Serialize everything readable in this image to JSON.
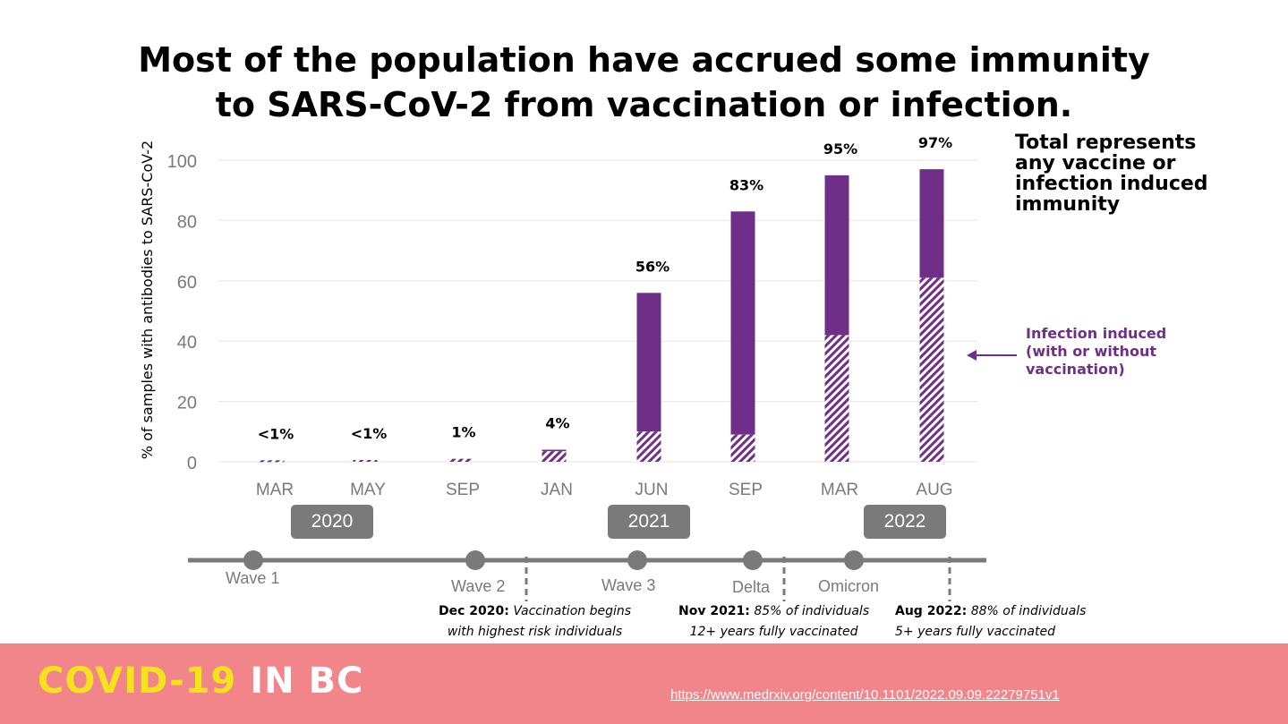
{
  "title": {
    "line1": "Most of the population have accrued some immunity",
    "line2": "to SARS-CoV-2 from vaccination or infection."
  },
  "side_note": "Total represents any vaccine or infection induced immunity",
  "legend": {
    "infection_label": "Infection induced (with or without vaccination)"
  },
  "years": [
    "2020",
    "2021",
    "2022"
  ],
  "timeline": {
    "waves": [
      "Wave 1",
      "Wave 2",
      "Wave 3",
      "Delta",
      "Omicron"
    ],
    "notes": [
      {
        "bold": "Dec 2020:",
        "italic1": "Vaccination begins",
        "italic2": "with highest risk individuals"
      },
      {
        "bold": "Nov 2021:",
        "italic1": "85% of individuals",
        "italic2": "12+ years fully vaccinated"
      },
      {
        "bold": "Aug 2022:",
        "italic1": "88% of individuals",
        "italic2": "5+ years fully vaccinated"
      }
    ]
  },
  "footer": {
    "brand_part1": "COVID-19",
    "brand_part2": "IN BC",
    "link": "https://www.medrxiv.org/content/10.1101/2022.09.09.22279751v1"
  },
  "colors": {
    "total": "#6f2f88",
    "infection_hatch": "#6f2f88",
    "axis_text": "#7a7a7a",
    "footer_bg": "#f2858a",
    "brand_yellow": "#f4e31c"
  },
  "chart_data": {
    "type": "bar",
    "ylabel": "% of samples with antibodies to SARS-CoV-2",
    "ylim": [
      0,
      100
    ],
    "yticks": [
      0,
      20,
      40,
      60,
      80,
      100
    ],
    "categories": [
      "MAR",
      "MAY",
      "SEP",
      "JAN",
      "JUN",
      "SEP",
      "MAR",
      "AUG"
    ],
    "series": [
      {
        "name": "Total",
        "values": [
          0.5,
          0.6,
          1,
          4,
          56,
          83,
          95,
          97
        ]
      },
      {
        "name": "Infection induced (with or without vaccination)",
        "values": [
          0.5,
          0.6,
          1,
          3.5,
          10,
          9,
          42,
          61
        ]
      }
    ],
    "data_labels": [
      "<1%",
      "<1%",
      "1%",
      "4%",
      "56%",
      "83%",
      "95%",
      "97%"
    ],
    "grid": true
  }
}
